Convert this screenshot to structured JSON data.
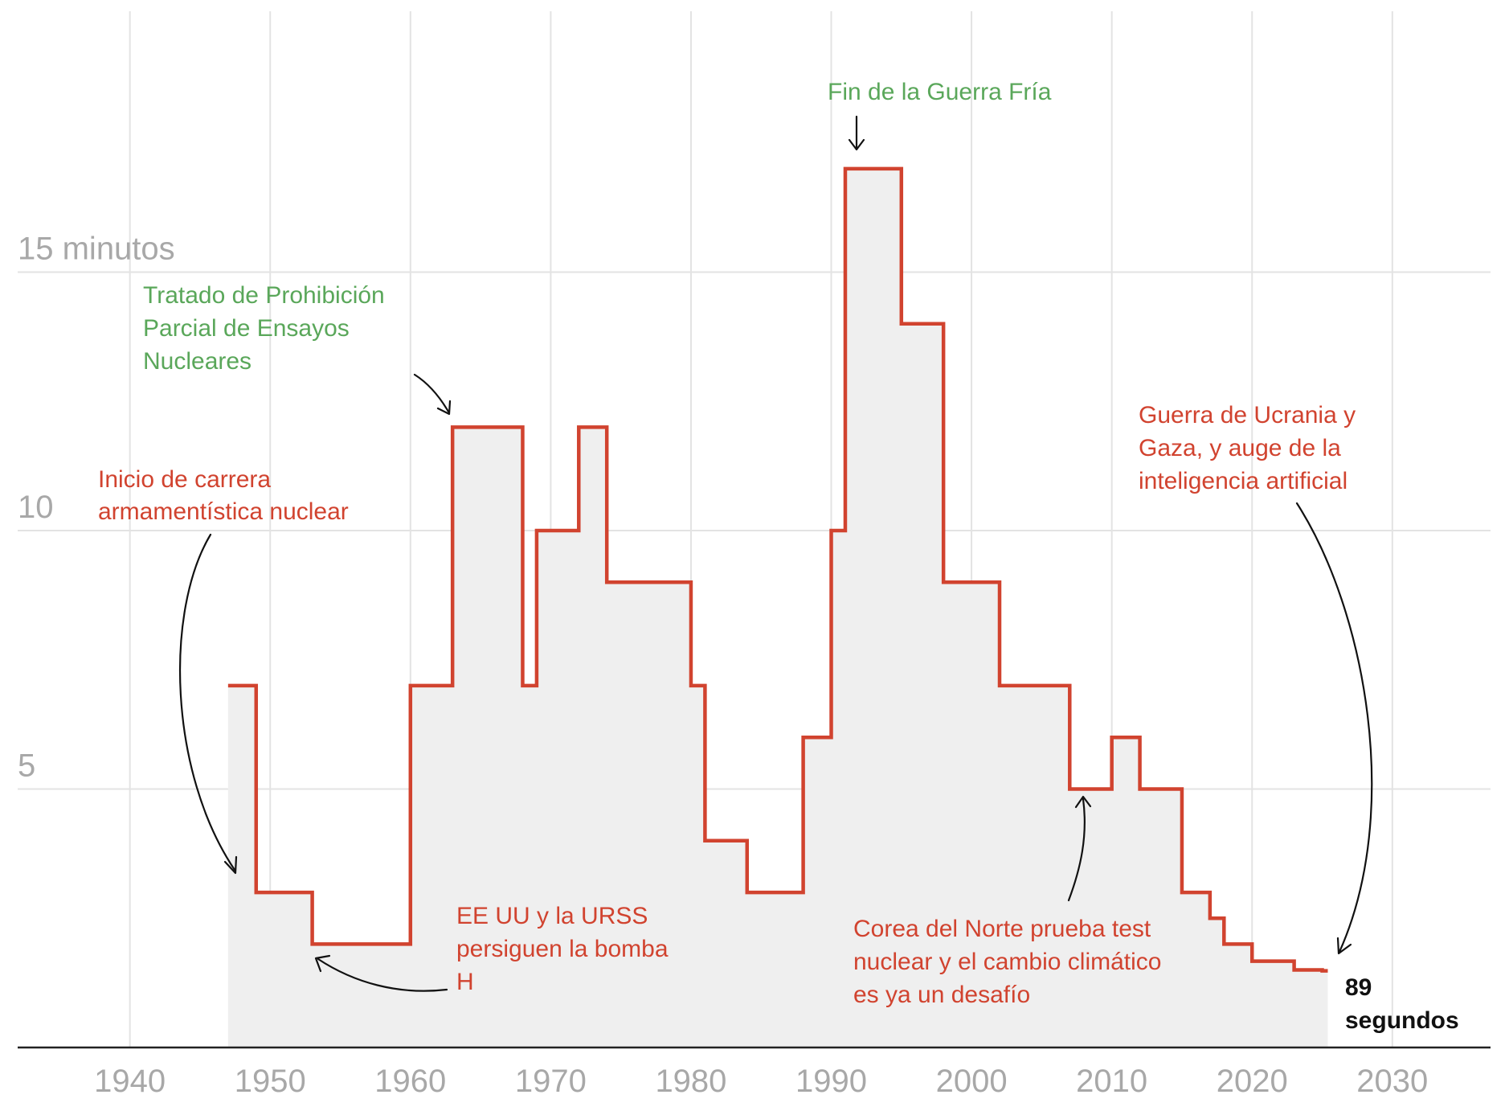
{
  "chart_data": {
    "type": "area",
    "title": "",
    "xlabel": "",
    "ylabel": "",
    "xlim": [
      1932,
      2037
    ],
    "ylim": [
      0,
      20
    ],
    "x_ticks": [
      1940,
      1950,
      1960,
      1970,
      1980,
      1990,
      2000,
      2010,
      2020,
      2030
    ],
    "x_tick_labels": [
      "1940",
      "1950",
      "1960",
      "1970",
      "1980",
      "1990",
      "2000",
      "2010",
      "2020",
      "2030"
    ],
    "y_ticks": [
      5,
      10,
      15
    ],
    "y_tick_labels": [
      "5",
      "10",
      "15 minutos"
    ],
    "grid": true,
    "line_color": "#d1432f",
    "fill_color": "#efefef",
    "series": [
      {
        "name": "",
        "points": [
          [
            1947,
            7
          ],
          [
            1949,
            3
          ],
          [
            1953,
            2
          ],
          [
            1960,
            7
          ],
          [
            1963,
            12
          ],
          [
            1968,
            7
          ],
          [
            1969,
            10
          ],
          [
            1972,
            12
          ],
          [
            1974,
            9
          ],
          [
            1980,
            7
          ],
          [
            1981,
            4
          ],
          [
            1984,
            3
          ],
          [
            1988,
            6
          ],
          [
            1990,
            10
          ],
          [
            1991,
            17
          ],
          [
            1995,
            14
          ],
          [
            1998,
            9
          ],
          [
            2002,
            7
          ],
          [
            2007,
            5
          ],
          [
            2010,
            6
          ],
          [
            2012,
            5
          ],
          [
            2015,
            3
          ],
          [
            2017,
            2.5
          ],
          [
            2018,
            2
          ],
          [
            2020,
            1.67
          ],
          [
            2023,
            1.5
          ],
          [
            2025,
            1.4833
          ]
        ],
        "end_x": 2025.4
      }
    ],
    "final_label": [
      "89",
      "segundos"
    ],
    "annotations": [
      {
        "id": "inicio",
        "color": "red",
        "lines": [
          "Inicio de carrera",
          "armamentística nuclear"
        ]
      },
      {
        "id": "tratado",
        "color": "green",
        "lines": [
          "Tratado de Prohibición",
          "Parcial de Ensayos",
          "Nucleares"
        ]
      },
      {
        "id": "bomba",
        "color": "red",
        "lines": [
          "EE UU y la URSS",
          "persiguen la bomba",
          "H"
        ]
      },
      {
        "id": "guerra-fria",
        "color": "green",
        "lines": [
          "Fin de la Guerra Fría"
        ]
      },
      {
        "id": "corea",
        "color": "red",
        "lines": [
          "Corea del Norte prueba test",
          "nuclear y el cambio climático",
          "es ya un desafío"
        ]
      },
      {
        "id": "ucrania",
        "color": "red",
        "lines": [
          "Guerra de Ucrania y",
          "Gaza, y auge de la",
          "inteligencia artificial"
        ]
      }
    ]
  }
}
